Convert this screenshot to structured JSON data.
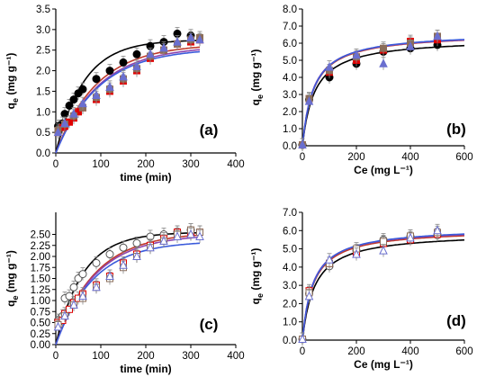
{
  "colors": {
    "fit_black": "#000000",
    "fit_red": "#c0392b",
    "fit_purple": "#8e44ad",
    "fit_blue": "#3b5bdb",
    "marker_black": "#000000",
    "marker_red": "#e00000",
    "marker_brown": "#8b6d5a",
    "marker_blue": "#6a6fcf"
  },
  "chart_data": [
    {
      "type": "scatter",
      "panel": "(a)",
      "xlabel": "time (min)",
      "ylabel_main": "q",
      "ylabel_sub": "e",
      "ylabel_unit": " (mg g⁻¹)",
      "xlim": [
        0,
        400
      ],
      "ylim": [
        0,
        3.5
      ],
      "xticks": [
        0,
        100,
        200,
        300,
        400
      ],
      "yticks": [
        0,
        0.5,
        1.0,
        1.5,
        2.0,
        2.5,
        3.0,
        3.5
      ],
      "ytick_labels": [
        "0.0",
        "0.5",
        "1.0",
        "1.5",
        "2.0",
        "2.5",
        "3.0",
        "3.5"
      ],
      "fit_kind": "kinetic",
      "filled_markers": true,
      "series": [
        {
          "marker": "circle",
          "color": "black",
          "fit": {
            "qmax": 2.75,
            "k": 0.016
          },
          "x": [
            5,
            15,
            20,
            30,
            40,
            50,
            60,
            90,
            120,
            150,
            180,
            210,
            240,
            270,
            300
          ],
          "y": [
            0.65,
            0.72,
            0.95,
            1.15,
            1.3,
            1.45,
            1.55,
            1.8,
            2.0,
            2.2,
            2.4,
            2.6,
            2.7,
            2.9,
            2.85
          ]
        },
        {
          "marker": "square",
          "color": "red",
          "fit": {
            "qmax": 2.65,
            "k": 0.011
          },
          "x": [
            5,
            15,
            20,
            30,
            40,
            50,
            60,
            90,
            120,
            150,
            180,
            210,
            240,
            270,
            300,
            320
          ],
          "y": [
            0.5,
            0.62,
            0.65,
            0.75,
            0.85,
            1.0,
            1.1,
            1.3,
            1.5,
            1.75,
            2.0,
            2.3,
            2.5,
            2.65,
            2.7,
            2.75
          ]
        },
        {
          "marker": "square",
          "color": "brown",
          "fit": {
            "qmax": 2.6,
            "k": 0.0105
          },
          "x": [
            5,
            20,
            40,
            60,
            90,
            120,
            150,
            180,
            210,
            240,
            270,
            300,
            320
          ],
          "y": [
            0.55,
            0.7,
            0.9,
            1.1,
            1.35,
            1.55,
            1.8,
            2.05,
            2.35,
            2.5,
            2.65,
            2.75,
            2.8
          ]
        },
        {
          "marker": "triangle",
          "color": "blue",
          "fit": {
            "qmax": 2.55,
            "k": 0.0105
          },
          "x": [
            5,
            20,
            40,
            60,
            90,
            120,
            150,
            180,
            210,
            240,
            270,
            300,
            320
          ],
          "y": [
            0.5,
            0.72,
            0.95,
            1.2,
            1.4,
            1.6,
            1.85,
            2.1,
            2.4,
            2.55,
            2.7,
            2.8,
            2.75
          ]
        }
      ]
    },
    {
      "type": "scatter",
      "panel": "(b)",
      "xlabel": "Ce (mg L⁻¹)",
      "ylabel_main": "q",
      "ylabel_sub": "e",
      "ylabel_unit": " (mg g⁻¹)",
      "xlim": [
        0,
        600
      ],
      "ylim": [
        0,
        8.0
      ],
      "xticks": [
        0,
        200,
        400,
        600
      ],
      "yticks": [
        0,
        1,
        2,
        3,
        4,
        5,
        6,
        7,
        8
      ],
      "ytick_labels": [
        "0.0",
        "1.0",
        "2.0",
        "3.0",
        "4.0",
        "5.0",
        "6.0",
        "7.0",
        "8.0"
      ],
      "fit_kind": "langmuir",
      "filled_markers": true,
      "series": [
        {
          "marker": "circle",
          "color": "black",
          "fit": {
            "qmax": 6.3,
            "K": 0.022
          },
          "x": [
            0,
            25,
            100,
            200,
            300,
            400,
            500
          ],
          "y": [
            0.05,
            2.7,
            4.0,
            4.8,
            5.5,
            5.7,
            5.9
          ]
        },
        {
          "marker": "square",
          "color": "red",
          "fit": {
            "qmax": 6.6,
            "K": 0.024
          },
          "x": [
            0,
            25,
            100,
            200,
            300,
            400,
            500
          ],
          "y": [
            0.05,
            2.75,
            4.3,
            5.0,
            5.6,
            6.1,
            6.2
          ]
        },
        {
          "marker": "square",
          "color": "brown",
          "fit": {
            "qmax": 6.6,
            "K": 0.025
          },
          "x": [
            0,
            25,
            100,
            200,
            300,
            400,
            500
          ],
          "y": [
            0.05,
            2.75,
            4.4,
            5.2,
            5.7,
            6.0,
            6.4
          ]
        },
        {
          "marker": "triangle",
          "color": "blue",
          "fit": {
            "qmax": 6.65,
            "K": 0.024
          },
          "x": [
            0,
            25,
            100,
            200,
            300,
            400,
            500
          ],
          "y": [
            0.05,
            2.6,
            4.6,
            5.3,
            4.8,
            5.8,
            6.4
          ]
        }
      ]
    },
    {
      "type": "scatter",
      "panel": "(c)",
      "xlabel": "time (min)",
      "ylabel_main": "q",
      "ylabel_sub": "e",
      "ylabel_unit": " (mg g⁻¹)",
      "xlim": [
        0,
        400
      ],
      "ylim": [
        0,
        3.0
      ],
      "xticks": [
        0,
        100,
        200,
        300,
        400
      ],
      "yticks": [
        0,
        0.25,
        0.5,
        0.75,
        1.0,
        1.25,
        1.5,
        1.75,
        2.0,
        2.25,
        2.5
      ],
      "ytick_labels": [
        "0.00",
        "0.25",
        "0.50",
        "0.75",
        "1.00",
        "1.25",
        "1.50",
        "1.75",
        "2.00",
        "2.25",
        "2.50"
      ],
      "fit_kind": "kinetic",
      "filled_markers": false,
      "series": [
        {
          "marker": "circle",
          "color": "black",
          "fit": {
            "qmax": 2.55,
            "k": 0.0165
          },
          "x": [
            5,
            15,
            20,
            30,
            40,
            50,
            60,
            90,
            120,
            150,
            180,
            210,
            240,
            270,
            300
          ],
          "y": [
            0.55,
            0.65,
            1.05,
            1.1,
            1.3,
            1.5,
            1.6,
            1.85,
            2.05,
            2.2,
            2.3,
            2.45,
            2.5,
            2.55,
            2.6
          ]
        },
        {
          "marker": "square",
          "color": "red",
          "fit": {
            "qmax": 2.55,
            "k": 0.0115
          },
          "x": [
            5,
            15,
            20,
            30,
            40,
            50,
            60,
            90,
            120,
            150,
            180,
            210,
            240,
            270,
            300,
            320
          ],
          "y": [
            0.5,
            0.55,
            0.7,
            0.8,
            0.95,
            1.05,
            1.15,
            1.35,
            1.55,
            1.85,
            2.05,
            2.25,
            2.4,
            2.55,
            2.5,
            2.55
          ]
        },
        {
          "marker": "square",
          "color": "brown",
          "fit": {
            "qmax": 2.5,
            "k": 0.0115
          },
          "x": [
            5,
            20,
            40,
            60,
            90,
            120,
            150,
            180,
            210,
            240,
            270,
            300,
            320
          ],
          "y": [
            0.45,
            0.65,
            0.9,
            1.05,
            1.3,
            1.5,
            1.75,
            2.0,
            2.2,
            2.35,
            2.5,
            2.6,
            2.55
          ]
        },
        {
          "marker": "triangle",
          "color": "blue",
          "fit": {
            "qmax": 2.35,
            "k": 0.012
          },
          "x": [
            5,
            20,
            40,
            60,
            90,
            120,
            150,
            180,
            210,
            240,
            270,
            300,
            320
          ],
          "y": [
            0.4,
            0.65,
            0.9,
            1.1,
            1.3,
            1.55,
            1.8,
            2.0,
            2.2,
            2.35,
            2.45,
            2.5,
            2.45
          ]
        }
      ]
    },
    {
      "type": "scatter",
      "panel": "(d)",
      "xlabel": "Ce (mg L⁻¹)",
      "ylabel_main": "q",
      "ylabel_sub": "e",
      "ylabel_unit": " (mg g⁻¹)",
      "xlim": [
        0,
        600
      ],
      "ylim": [
        0,
        7.0
      ],
      "xticks": [
        0,
        200,
        400,
        600
      ],
      "yticks": [
        0,
        1,
        2,
        3,
        4,
        5,
        6,
        7
      ],
      "ytick_labels": [
        "0.0",
        "1.0",
        "2.0",
        "3.0",
        "4.0",
        "5.0",
        "6.0",
        "7.0"
      ],
      "fit_kind": "langmuir",
      "filled_markers": false,
      "series": [
        {
          "marker": "circle",
          "color": "black",
          "fit": {
            "qmax": 5.9,
            "K": 0.022
          },
          "x": [
            0,
            25,
            100,
            200,
            300,
            400,
            500
          ],
          "y": [
            0.05,
            2.55,
            4.05,
            4.9,
            5.5,
            5.7,
            5.75
          ]
        },
        {
          "marker": "square",
          "color": "red",
          "fit": {
            "qmax": 6.1,
            "K": 0.025
          },
          "x": [
            0,
            25,
            100,
            200,
            300,
            400,
            500
          ],
          "y": [
            0.05,
            2.7,
            4.2,
            4.8,
            5.3,
            5.5,
            5.8
          ]
        },
        {
          "marker": "square",
          "color": "brown",
          "fit": {
            "qmax": 6.15,
            "K": 0.026
          },
          "x": [
            0,
            25,
            100,
            200,
            300,
            400,
            500
          ],
          "y": [
            0.05,
            2.6,
            4.2,
            5.0,
            5.4,
            5.7,
            5.9
          ]
        },
        {
          "marker": "triangle",
          "color": "blue",
          "fit": {
            "qmax": 6.2,
            "K": 0.025
          },
          "x": [
            0,
            25,
            100,
            200,
            300,
            400,
            500
          ],
          "y": [
            0.05,
            2.4,
            4.4,
            4.7,
            4.9,
            5.6,
            6.0
          ]
        }
      ]
    }
  ]
}
